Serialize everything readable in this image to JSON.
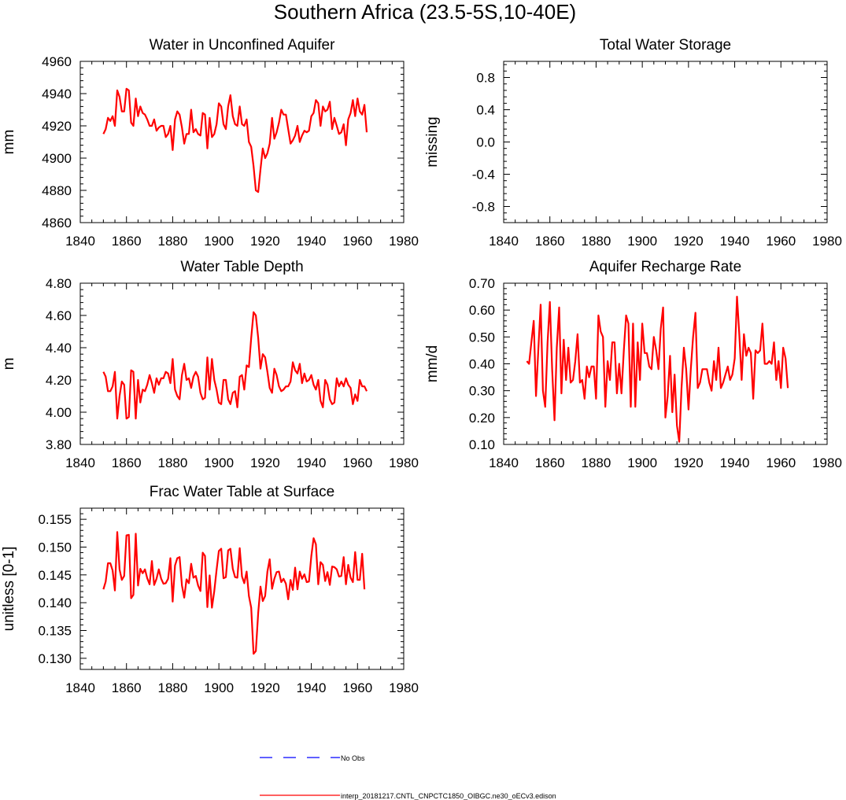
{
  "figure": {
    "title": "Southern Africa (23.5-5S,10-40E)"
  },
  "legend": {
    "obs_label": "No Obs",
    "obs_color": "#0000ff",
    "model_label": "interp_20181217.CNTL_CNPCTC1850_OIBGC.ne30_oECv3.edison",
    "model_color": "#ff0000"
  },
  "chart_data": [
    {
      "id": "wa",
      "type": "line",
      "title": "Water in Unconfined Aquifer",
      "xlabel": "",
      "ylabel": "mm",
      "xlim": [
        1840,
        1980
      ],
      "ylim": [
        4860,
        4960
      ],
      "xticks": [
        1840,
        1860,
        1880,
        1900,
        1920,
        1940,
        1960,
        1980
      ],
      "xtick_labels": [
        "1840",
        "1860",
        "1880",
        "1900",
        "1920",
        "1940",
        "1960",
        "1980"
      ],
      "yticks": [
        4860,
        4880,
        4900,
        4920,
        4940,
        4960
      ],
      "ytick_labels": [
        "4860",
        "4880",
        "4900",
        "4920",
        "4940",
        "4960"
      ],
      "series": [
        {
          "name": "interp_20181217.CNTL_CNPCTC1850_OIBGC.ne30_oECv3.edison",
          "x_start": 1850,
          "values": [
            4915,
            4918,
            4925,
            4923,
            4926,
            4920,
            4942,
            4938,
            4929,
            4929,
            4943,
            4942,
            4922,
            4920,
            4937,
            4926,
            4932,
            4928,
            4927,
            4924,
            4920,
            4920,
            4924,
            4917,
            4919,
            4920,
            4920,
            4913,
            4915,
            4920,
            4905,
            4924,
            4929,
            4927,
            4919,
            4909,
            4915,
            4915,
            4930,
            4916,
            4918,
            4915,
            4914,
            4928,
            4927,
            4906,
            4925,
            4913,
            4915,
            4921,
            4934,
            4932,
            4921,
            4918,
            4932,
            4939,
            4926,
            4921,
            4920,
            4932,
            4921,
            4920,
            4924,
            4910,
            4907,
            4895,
            4880,
            4879,
            4893,
            4906,
            4900,
            4903,
            4909,
            4925,
            4912,
            4916,
            4922,
            4930,
            4927,
            4927,
            4918,
            4909,
            4911,
            4914,
            4920,
            4910,
            4914,
            4917,
            4916,
            4917,
            4926,
            4928,
            4936,
            4934,
            4920,
            4932,
            4929,
            4930,
            4935,
            4918,
            4925,
            4920,
            4915,
            4916,
            4921,
            4908,
            4924,
            4928,
            4936,
            4926,
            4937,
            4929,
            4927,
            4933,
            4916
          ]
        }
      ]
    },
    {
      "id": "tws",
      "type": "line",
      "title": "Total Water Storage",
      "xlabel": "",
      "ylabel": "missing",
      "xlim": [
        1840,
        1980
      ],
      "ylim": [
        -1,
        1
      ],
      "xticks": [
        1840,
        1860,
        1880,
        1900,
        1920,
        1940,
        1960,
        1980
      ],
      "xtick_labels": [
        "1840",
        "1860",
        "1880",
        "1900",
        "1920",
        "1940",
        "1960",
        "1980"
      ],
      "yticks": [
        -0.8,
        -0.4,
        0.0,
        0.4,
        0.8
      ],
      "ytick_labels": [
        "-0.8",
        "-0.4",
        "0.0",
        "0.4",
        "0.8"
      ],
      "series": []
    },
    {
      "id": "wtd",
      "type": "line",
      "title": "Water Table Depth",
      "xlabel": "",
      "ylabel": "m",
      "xlim": [
        1840,
        1980
      ],
      "ylim": [
        3.8,
        4.8
      ],
      "xticks": [
        1840,
        1860,
        1880,
        1900,
        1920,
        1940,
        1960,
        1980
      ],
      "xtick_labels": [
        "1840",
        "1860",
        "1880",
        "1900",
        "1920",
        "1940",
        "1960",
        "1980"
      ],
      "yticks": [
        3.8,
        4.0,
        4.2,
        4.4,
        4.6,
        4.8
      ],
      "ytick_labels": [
        "3.80",
        "4.00",
        "4.20",
        "4.40",
        "4.60",
        "4.80"
      ],
      "series": [
        {
          "name": "interp_20181217.CNTL_CNPCTC1850_OIBGC.ne30_oECv3.edison",
          "x_start": 1850,
          "values": [
            4.25,
            4.22,
            4.13,
            4.13,
            4.16,
            4.25,
            3.96,
            4.1,
            4.19,
            4.17,
            3.96,
            3.97,
            4.26,
            4.25,
            3.96,
            4.2,
            4.06,
            4.14,
            4.13,
            4.17,
            4.23,
            4.18,
            4.12,
            4.21,
            4.17,
            4.21,
            4.21,
            4.25,
            4.24,
            4.18,
            4.33,
            4.14,
            4.1,
            4.08,
            4.23,
            4.3,
            4.2,
            4.21,
            4.15,
            4.22,
            4.25,
            4.22,
            4.12,
            4.08,
            4.09,
            4.34,
            4.14,
            4.33,
            4.2,
            4.14,
            4.06,
            4.05,
            4.2,
            4.2,
            4.08,
            4.05,
            4.12,
            4.13,
            4.03,
            4.22,
            4.23,
            4.14,
            4.29,
            4.28,
            4.46,
            4.62,
            4.6,
            4.46,
            4.27,
            4.36,
            4.34,
            4.25,
            4.15,
            4.12,
            4.27,
            4.23,
            4.16,
            4.13,
            4.14,
            4.16,
            4.16,
            4.19,
            4.31,
            4.26,
            4.24,
            4.3,
            4.18,
            4.24,
            4.19,
            4.2,
            4.23,
            4.17,
            4.14,
            4.2,
            4.07,
            4.03,
            4.2,
            4.17,
            4.08,
            4.05,
            4.06,
            4.21,
            4.16,
            4.19,
            4.16,
            4.21,
            4.17,
            4.15,
            4.05,
            4.11,
            4.07,
            4.2,
            4.16,
            4.16,
            4.13
          ]
        }
      ]
    },
    {
      "id": "arr",
      "type": "line",
      "title": "Aquifer Recharge Rate",
      "xlabel": "",
      "ylabel": "mm/d",
      "xlim": [
        1840,
        1980
      ],
      "ylim": [
        0.1,
        0.7
      ],
      "xticks": [
        1840,
        1860,
        1880,
        1900,
        1920,
        1940,
        1960,
        1980
      ],
      "xtick_labels": [
        "1840",
        "1860",
        "1880",
        "1900",
        "1920",
        "1940",
        "1960",
        "1980"
      ],
      "yticks": [
        0.1,
        0.2,
        0.3,
        0.4,
        0.5,
        0.6,
        0.7
      ],
      "ytick_labels": [
        "0.10",
        "0.20",
        "0.30",
        "0.40",
        "0.50",
        "0.60",
        "0.70"
      ],
      "series": [
        {
          "name": "interp_20181217.CNTL_CNPCTC1850_OIBGC.ne30_oECv3.edison",
          "x_start": 1850,
          "values": [
            0.41,
            0.4,
            0.48,
            0.56,
            0.28,
            0.45,
            0.62,
            0.3,
            0.24,
            0.48,
            0.63,
            0.38,
            0.19,
            0.46,
            0.61,
            0.29,
            0.49,
            0.34,
            0.46,
            0.33,
            0.34,
            0.41,
            0.51,
            0.33,
            0.34,
            0.27,
            0.39,
            0.35,
            0.39,
            0.39,
            0.27,
            0.58,
            0.52,
            0.5,
            0.24,
            0.41,
            0.34,
            0.48,
            0.48,
            0.29,
            0.4,
            0.29,
            0.45,
            0.58,
            0.55,
            0.24,
            0.55,
            0.24,
            0.48,
            0.34,
            0.55,
            0.44,
            0.44,
            0.39,
            0.38,
            0.5,
            0.45,
            0.38,
            0.53,
            0.61,
            0.2,
            0.28,
            0.43,
            0.22,
            0.36,
            0.17,
            0.11,
            0.31,
            0.46,
            0.38,
            0.23,
            0.38,
            0.5,
            0.59,
            0.31,
            0.33,
            0.38,
            0.38,
            0.38,
            0.33,
            0.3,
            0.41,
            0.34,
            0.46,
            0.31,
            0.33,
            0.36,
            0.39,
            0.34,
            0.36,
            0.42,
            0.65,
            0.51,
            0.34,
            0.51,
            0.43,
            0.46,
            0.44,
            0.27,
            0.45,
            0.44,
            0.45,
            0.55,
            0.4,
            0.4,
            0.41,
            0.4,
            0.48,
            0.34,
            0.41,
            0.31,
            0.46,
            0.42,
            0.31
          ]
        }
      ]
    },
    {
      "id": "fwts",
      "type": "line",
      "title": "Frac Water Table at Surface",
      "xlabel": "",
      "ylabel": "unitless [0-1]",
      "xlim": [
        1840,
        1980
      ],
      "ylim": [
        0.128,
        0.157
      ],
      "xticks": [
        1840,
        1860,
        1880,
        1900,
        1920,
        1940,
        1960,
        1980
      ],
      "xtick_labels": [
        "1840",
        "1860",
        "1880",
        "1900",
        "1920",
        "1940",
        "1960",
        "1980"
      ],
      "yticks": [
        0.13,
        0.135,
        0.14,
        0.145,
        0.15,
        0.155
      ],
      "ytick_labels": [
        "0.130",
        "0.135",
        "0.140",
        "0.145",
        "0.150",
        "0.155"
      ],
      "series": [
        {
          "name": "interp_20181217.CNTL_CNPCTC1850_OIBGC.ne30_oECv3.edison",
          "x_start": 1850,
          "values": [
            0.1424,
            0.1438,
            0.1471,
            0.1471,
            0.1458,
            0.1422,
            0.1527,
            0.146,
            0.1441,
            0.1448,
            0.1521,
            0.1522,
            0.1408,
            0.1414,
            0.1524,
            0.1431,
            0.1461,
            0.1453,
            0.146,
            0.1444,
            0.1433,
            0.1475,
            0.1432,
            0.1443,
            0.146,
            0.1443,
            0.1434,
            0.1435,
            0.1443,
            0.148,
            0.1402,
            0.1467,
            0.148,
            0.1482,
            0.1431,
            0.1409,
            0.1442,
            0.1435,
            0.147,
            0.1445,
            0.1448,
            0.1431,
            0.1421,
            0.149,
            0.1484,
            0.1392,
            0.1449,
            0.1391,
            0.1421,
            0.1459,
            0.1493,
            0.1497,
            0.1444,
            0.1446,
            0.1494,
            0.1497,
            0.1461,
            0.1446,
            0.1445,
            0.1498,
            0.1447,
            0.1435,
            0.1456,
            0.1412,
            0.1391,
            0.1308,
            0.1313,
            0.1382,
            0.1429,
            0.1403,
            0.1412,
            0.1456,
            0.1478,
            0.1425,
            0.1443,
            0.1455,
            0.1456,
            0.1437,
            0.1443,
            0.1434,
            0.1406,
            0.1441,
            0.1423,
            0.1463,
            0.1424,
            0.1456,
            0.1443,
            0.1451,
            0.1437,
            0.1438,
            0.1484,
            0.1516,
            0.1505,
            0.1433,
            0.1473,
            0.1468,
            0.1439,
            0.1455,
            0.1432,
            0.1465,
            0.1464,
            0.146,
            0.1447,
            0.1448,
            0.1482,
            0.1433,
            0.1468,
            0.1445,
            0.1437,
            0.1491,
            0.1441,
            0.1441,
            0.1488,
            0.1424
          ]
        }
      ]
    }
  ]
}
